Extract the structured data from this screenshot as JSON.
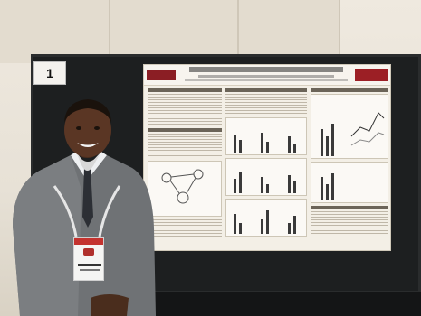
{
  "board": {
    "number": "1"
  }
}
